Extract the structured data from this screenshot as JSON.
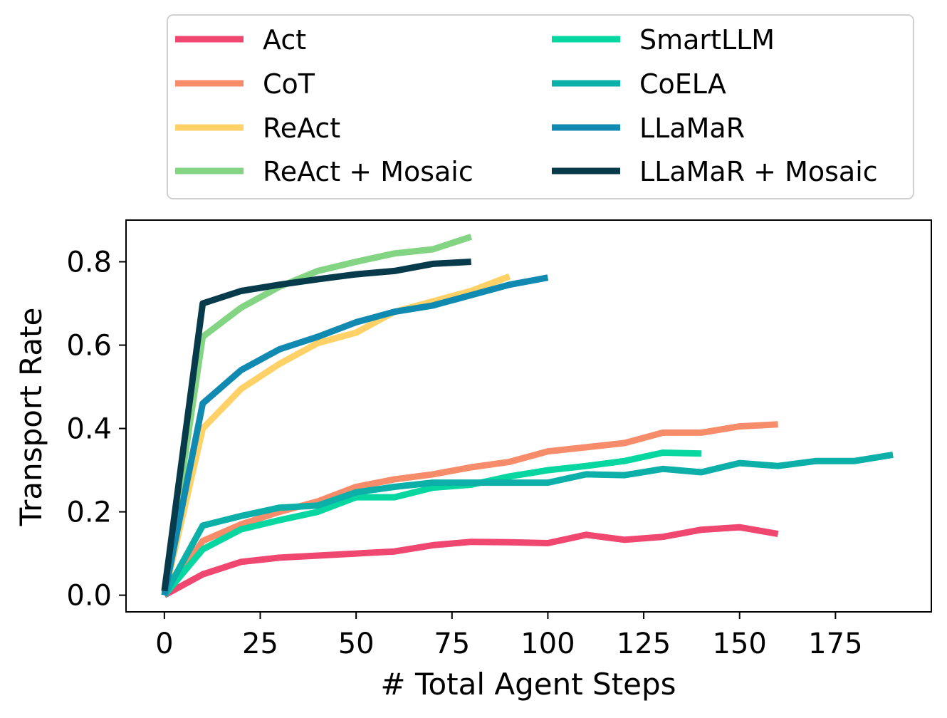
{
  "chart_data": {
    "type": "line",
    "title": "",
    "xlabel": "# Total Agent Steps",
    "ylabel": "Transport Rate",
    "xlim": [
      -10,
      200
    ],
    "ylim": [
      -0.04,
      0.9
    ],
    "xticks": [
      0,
      25,
      50,
      75,
      100,
      125,
      150,
      175
    ],
    "yticks": [
      0.0,
      0.2,
      0.4,
      0.6,
      0.8
    ],
    "xtick_labels": [
      "0",
      "25",
      "50",
      "75",
      "100",
      "125",
      "150",
      "175"
    ],
    "ytick_labels": [
      "0.0",
      "0.2",
      "0.4",
      "0.6",
      "0.8"
    ],
    "grid": false,
    "legend_position": "above plot, two columns",
    "series": [
      {
        "name": "Act",
        "color": "#EF476F",
        "x": [
          0,
          10,
          20,
          30,
          40,
          50,
          60,
          70,
          80,
          90,
          100,
          110,
          120,
          130,
          140,
          150,
          160
        ],
        "y": [
          0.0,
          0.05,
          0.08,
          0.09,
          0.095,
          0.1,
          0.105,
          0.12,
          0.128,
          0.127,
          0.125,
          0.145,
          0.133,
          0.14,
          0.157,
          0.163,
          0.147
        ]
      },
      {
        "name": "CoT",
        "color": "#F78C6B",
        "x": [
          0,
          10,
          20,
          30,
          40,
          50,
          60,
          70,
          80,
          90,
          100,
          110,
          120,
          130,
          140,
          150,
          160
        ],
        "y": [
          0.0,
          0.13,
          0.17,
          0.2,
          0.225,
          0.26,
          0.278,
          0.29,
          0.307,
          0.32,
          0.345,
          0.355,
          0.365,
          0.39,
          0.39,
          0.405,
          0.41
        ]
      },
      {
        "name": "ReAct",
        "color": "#FFD166",
        "x": [
          0,
          10,
          20,
          30,
          40,
          50,
          60,
          70,
          80,
          90
        ],
        "y": [
          0.0,
          0.4,
          0.495,
          0.555,
          0.605,
          0.63,
          0.68,
          0.705,
          0.73,
          0.765
        ]
      },
      {
        "name": "ReAct + Mosaic",
        "color": "#83D483",
        "x": [
          0,
          10,
          20,
          30,
          40,
          50,
          60,
          70,
          80
        ],
        "y": [
          0.0,
          0.62,
          0.69,
          0.74,
          0.778,
          0.8,
          0.82,
          0.83,
          0.86
        ]
      },
      {
        "name": "SmartLLM",
        "color": "#06D6A0",
        "x": [
          0,
          10,
          20,
          30,
          40,
          50,
          60,
          70,
          80,
          90,
          100,
          110,
          120,
          130,
          140
        ],
        "y": [
          0.0,
          0.11,
          0.158,
          0.18,
          0.2,
          0.235,
          0.235,
          0.258,
          0.265,
          0.285,
          0.3,
          0.31,
          0.322,
          0.342,
          0.34
        ]
      },
      {
        "name": "CoELA",
        "color": "#0CB0A9",
        "x": [
          0,
          10,
          20,
          30,
          40,
          50,
          60,
          70,
          80,
          90,
          100,
          110,
          120,
          130,
          140,
          150,
          160,
          170,
          180,
          190
        ],
        "y": [
          0.0,
          0.167,
          0.19,
          0.21,
          0.215,
          0.247,
          0.26,
          0.27,
          0.27,
          0.27,
          0.27,
          0.29,
          0.288,
          0.303,
          0.295,
          0.317,
          0.31,
          0.322,
          0.322,
          0.337
        ]
      },
      {
        "name": "LLaMaR",
        "color": "#118AB2",
        "x": [
          0,
          10,
          20,
          30,
          40,
          50,
          60,
          70,
          80,
          90,
          100
        ],
        "y": [
          0.0,
          0.46,
          0.54,
          0.59,
          0.62,
          0.655,
          0.68,
          0.695,
          0.72,
          0.745,
          0.762
        ]
      },
      {
        "name": "LLaMaR + Mosaic",
        "color": "#073B4C",
        "x": [
          0,
          10,
          20,
          30,
          40,
          50,
          60,
          70,
          80
        ],
        "y": [
          0.01,
          0.7,
          0.73,
          0.745,
          0.758,
          0.77,
          0.778,
          0.795,
          0.8
        ]
      }
    ],
    "legend_order": [
      "Act",
      "CoT",
      "ReAct",
      "ReAct + Mosaic",
      "SmartLLM",
      "CoELA",
      "LLaMaR",
      "LLaMaR + Mosaic"
    ]
  }
}
